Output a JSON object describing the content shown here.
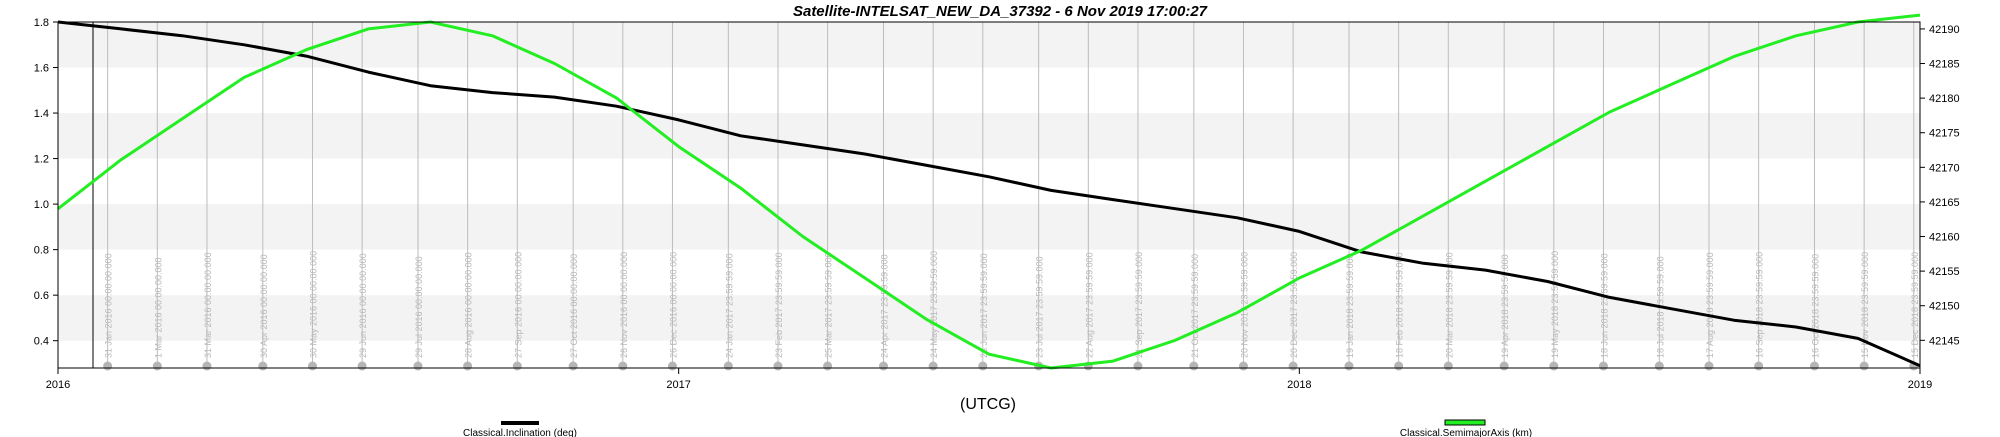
{
  "chart_data": {
    "type": "line",
    "title": "Satellite-INTELSAT_NEW_DA_37392 -  6 Nov 2019 17:00:27",
    "xlabel": "(UTCG)",
    "x_tick_labels": [
      "2016",
      "2017",
      "2018",
      "2019"
    ],
    "x_range": [
      2016.0,
      2019.0
    ],
    "y_left": {
      "range": [
        0.28,
        1.8
      ],
      "ticks": [
        0.4,
        0.6,
        0.8,
        1.0,
        1.2,
        1.4,
        1.6,
        1.8
      ],
      "tick_labels": [
        "0.4",
        "0.6",
        "0.8",
        "1.0",
        "1.2",
        "1.4",
        "1.6",
        "1.8"
      ]
    },
    "y_right": {
      "range": [
        42141,
        42191
      ],
      "ticks": [
        42145,
        42150,
        42155,
        42160,
        42165,
        42170,
        42175,
        42180,
        42185,
        42190
      ],
      "tick_labels": [
        "42145",
        "42150",
        "42155",
        "42160",
        "42165",
        "42170",
        "42175",
        "42180",
        "42185",
        "42190"
      ]
    },
    "background_bands": "alternating white / light gray per left-axis interval",
    "legend_position": "bottom",
    "series": [
      {
        "name": "Classical.Inclination (deg)",
        "axis": "left",
        "color": "#000000",
        "x": [
          2016.0,
          2016.1,
          2016.2,
          2016.3,
          2016.4,
          2016.5,
          2016.6,
          2016.7,
          2016.8,
          2016.9,
          2017.0,
          2017.1,
          2017.2,
          2017.3,
          2017.4,
          2017.5,
          2017.6,
          2017.7,
          2017.8,
          2017.9,
          2018.0,
          2018.1,
          2018.2,
          2018.3,
          2018.4,
          2018.5,
          2018.6,
          2018.7,
          2018.8,
          2018.9,
          2019.0
        ],
        "values": [
          1.8,
          1.77,
          1.74,
          1.7,
          1.65,
          1.58,
          1.52,
          1.49,
          1.47,
          1.43,
          1.37,
          1.3,
          1.26,
          1.22,
          1.17,
          1.12,
          1.06,
          1.02,
          0.98,
          0.94,
          0.88,
          0.79,
          0.74,
          0.71,
          0.66,
          0.59,
          0.54,
          0.49,
          0.46,
          0.41,
          0.29
        ]
      },
      {
        "name": "Classical.SemimajorAxis (km)",
        "axis": "right",
        "color": "#22ee22",
        "x": [
          2016.0,
          2016.1,
          2016.2,
          2016.3,
          2016.4,
          2016.5,
          2016.6,
          2016.7,
          2016.8,
          2016.9,
          2017.0,
          2017.1,
          2017.2,
          2017.3,
          2017.4,
          2017.5,
          2017.6,
          2017.7,
          2017.8,
          2017.9,
          2018.0,
          2018.1,
          2018.2,
          2018.3,
          2018.4,
          2018.5,
          2018.6,
          2018.7,
          2018.8,
          2018.9,
          2019.0
        ],
        "values": [
          42164,
          42171,
          42177,
          42183,
          42187,
          42190,
          42191,
          42189,
          42185,
          42180,
          42173,
          42167,
          42160,
          42154,
          42148,
          42143,
          42141,
          42142,
          42145,
          42149,
          42154,
          42158,
          42163,
          42168,
          42173,
          42178,
          42182,
          42186,
          42189,
          42191,
          42192
        ]
      }
    ],
    "event_x": [
      2016.08,
      2016.16,
      2016.24,
      2016.33,
      2016.41,
      2016.49,
      2016.58,
      2016.66,
      2016.74,
      2016.83,
      2016.91,
      2016.99,
      2017.08,
      2017.16,
      2017.24,
      2017.33,
      2017.41,
      2017.49,
      2017.58,
      2017.66,
      2017.74,
      2017.83,
      2017.91,
      2017.99,
      2018.08,
      2018.16,
      2018.24,
      2018.33,
      2018.41,
      2018.49,
      2018.58,
      2018.66,
      2018.74,
      2018.83,
      2018.91,
      2018.99
    ],
    "event_labels": [
      "31 Jan 2016 00:00:00.000",
      "1 Mar 2016 00:00:00.000",
      "31 Mar 2016 00:00:00.000",
      "30 Apr 2016 00:00:00.000",
      "30 May 2016 00:00:00.000",
      "29 Jun 2016 00:00:00.000",
      "29 Jul 2016 00:00:00.000",
      "28 Aug 2016 00:00:00.000",
      "27 Sep 2016 00:00:00.000",
      "27 Oct 2016 00:00:00.000",
      "26 Nov 2016 00:00:00.000",
      "26 Dec 2016 00:00:00.000",
      "24 Jan 2017 23:59:59.000",
      "23 Feb 2017 23:59:59.000",
      "25 Mar 2017 23:59:59.000",
      "24 Apr 2017 23:59:59.000",
      "24 May 2017 23:59:59.000",
      "23 Jun 2017 23:59:59.000",
      "23 Jul 2017 23:59:59.000",
      "22 Aug 2017 23:59:59.000",
      "21 Sep 2017 23:59:59.000",
      "21 Oct 2017 23:59:59.000",
      "20 Nov 2017 23:59:59.000",
      "20 Dec 2017 23:59:59.000",
      "19 Jan 2018 23:59:59.000",
      "18 Feb 2018 23:59:59.000",
      "20 Mar 2018 23:59:59.000",
      "19 Apr 2018 23:59:59.000",
      "19 May 2018 23:59:59.000",
      "18 Jun 2018 23:59:59.000",
      "18 Jul 2018 23:59:59.000",
      "17 Aug 2018 23:59:59.000",
      "16 Sep 2018 23:59:59.000",
      "16 Oct 2018 23:59:59.000",
      "15 Nov 2018 23:59:59.000",
      "15 Dec 2018 23:59:59.000"
    ]
  }
}
